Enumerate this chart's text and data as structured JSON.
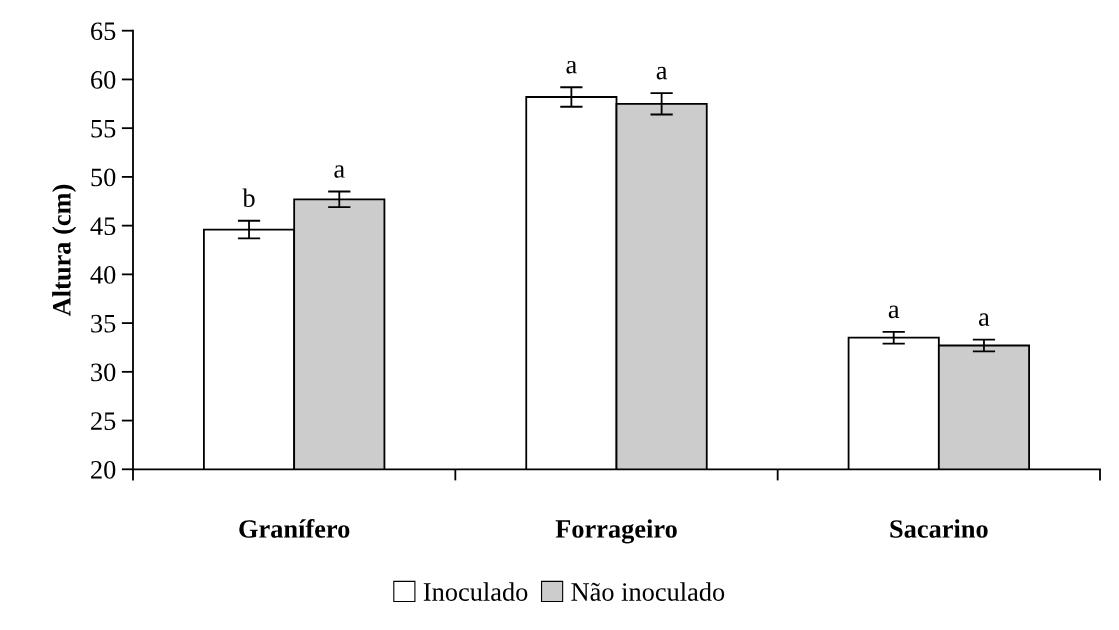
{
  "chart_data": {
    "type": "bar",
    "ylabel": "Altura (cm)",
    "categories": [
      "Granífero",
      "Forrageiro",
      "Sacarino"
    ],
    "series": [
      {
        "name": "Inoculado",
        "color": "#ffffff",
        "values": [
          44.6,
          58.2,
          33.5
        ],
        "errors": [
          0.9,
          1.0,
          0.6
        ],
        "value_labels": [
          "b",
          "a",
          "a"
        ]
      },
      {
        "name": "Não inoculado",
        "color": "#cccccc",
        "values": [
          47.7,
          57.5,
          32.7
        ],
        "errors": [
          0.8,
          1.1,
          0.6
        ],
        "value_labels": [
          "a",
          "a",
          "a"
        ]
      }
    ],
    "ylim": [
      20,
      65
    ],
    "yticks": [
      20,
      25,
      30,
      35,
      40,
      45,
      50,
      55,
      60,
      65
    ],
    "grid": false,
    "legend": "bottom"
  }
}
